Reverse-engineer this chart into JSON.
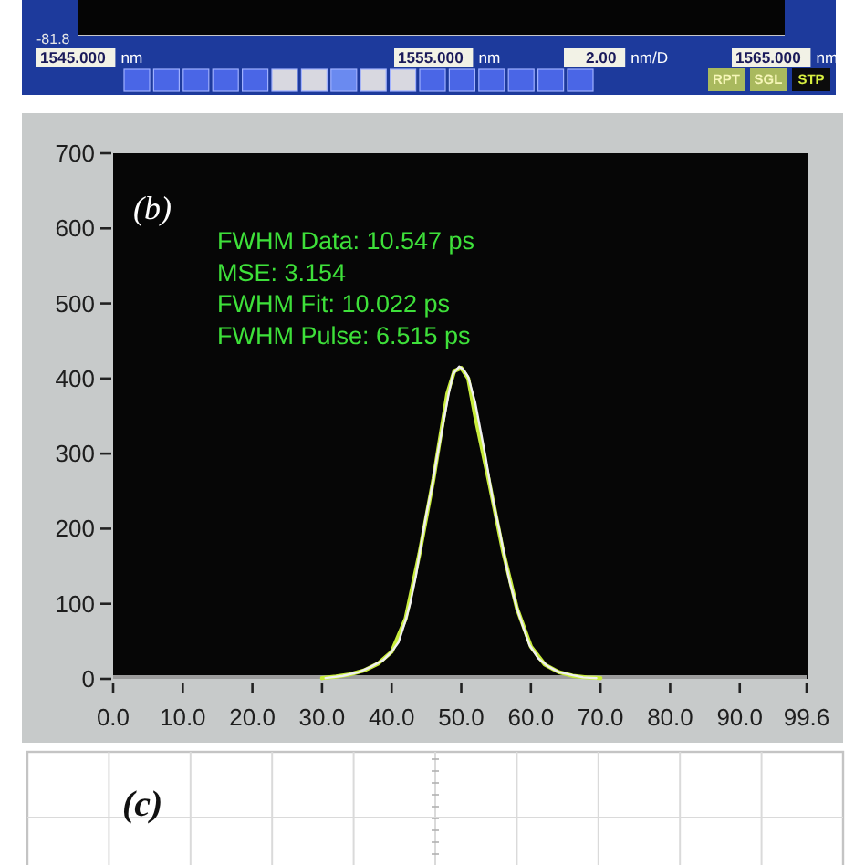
{
  "chart_data": [
    {
      "type": "other",
      "annotations": [
        "-81.8",
        "1545.000 nm",
        "1555.000 nm",
        "2.00 nm/D",
        "1565.000 nm",
        "RPT",
        "SGL",
        "STP"
      ]
    },
    {
      "type": "line",
      "title": "(b)",
      "annotations": [
        "FWHM Data: 10.547 ps",
        "MSE: 3.154",
        "FWHM Fit: 10.022 ps",
        "FWHM Pulse: 6.515 ps"
      ],
      "xlim": [
        0,
        99.6
      ],
      "xticks": [
        {
          "value": 0,
          "label": "0.0"
        },
        {
          "value": 10,
          "label": "10.0"
        },
        {
          "value": 20,
          "label": "20.0"
        },
        {
          "value": 30,
          "label": "30.0"
        },
        {
          "value": 40,
          "label": "40.0"
        },
        {
          "value": 50,
          "label": "50.0"
        },
        {
          "value": 60,
          "label": "60.0"
        },
        {
          "value": 70,
          "label": "70.0"
        },
        {
          "value": 80,
          "label": "80.0"
        },
        {
          "value": 90,
          "label": "90.0"
        },
        {
          "value": 99.6,
          "label": "99.6"
        }
      ],
      "ylim": [
        0,
        700
      ],
      "yticks": [
        0,
        100,
        200,
        300,
        400,
        500,
        600,
        700
      ],
      "series": [
        {
          "color": "#c8ec3c",
          "x": [
            30,
            32,
            34,
            36,
            38,
            40,
            42,
            44,
            46,
            48,
            49,
            50,
            51,
            52,
            54,
            56,
            58,
            60,
            62,
            64,
            66,
            68,
            70
          ],
          "values": [
            1,
            3,
            6,
            11,
            20,
            36,
            80,
            167,
            266,
            380,
            410,
            414,
            400,
            350,
            262,
            170,
            94,
            43,
            19,
            9,
            4,
            2,
            1
          ]
        },
        {
          "color": "#f0f0f0",
          "x": [
            30.5,
            33,
            35.3,
            37,
            38.8,
            40,
            41,
            42,
            42.7,
            43.5,
            44,
            45,
            45.8,
            46.5,
            47.5,
            48.2,
            48.8,
            49.7,
            50.3,
            51,
            52,
            52.8,
            53.5,
            54.5,
            55.5,
            56.3,
            57,
            58,
            59,
            59.8,
            61,
            62.4,
            64,
            65.9,
            67.5,
            69.4
          ],
          "values": [
            1,
            4,
            9,
            16,
            25,
            36,
            49,
            78,
            102,
            138,
            167,
            220,
            256,
            295,
            345,
            380,
            406,
            416,
            412,
            402,
            368,
            329,
            295,
            240,
            197,
            159,
            128,
            94,
            66,
            45,
            28,
            17,
            9,
            5,
            2,
            1
          ]
        }
      ]
    },
    {
      "type": "other",
      "title": "(c)"
    }
  ]
}
